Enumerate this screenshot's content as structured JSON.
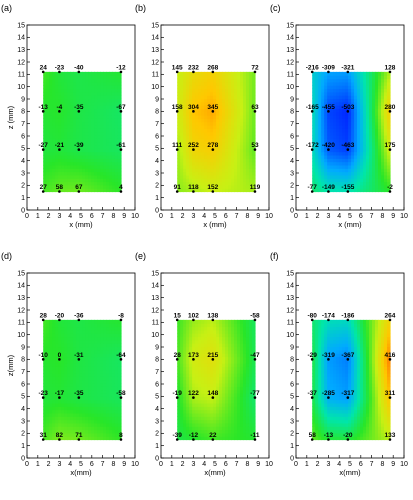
{
  "chart_data": [
    {
      "type": "heatmap",
      "panel_label": "(a)",
      "xlabel": "x (mm)",
      "ylabel": "z (mm)",
      "xlim": [
        0,
        10
      ],
      "ylim": [
        0,
        15
      ],
      "x_ticks": [
        "0",
        "1",
        "2",
        "3",
        "4",
        "5",
        "6",
        "7",
        "8",
        "9",
        "10"
      ],
      "y_ticks": [
        "0",
        "1",
        "2",
        "3",
        "4",
        "5",
        "6",
        "7",
        "8",
        "9",
        "10",
        "11",
        "12",
        "13",
        "14",
        "15"
      ],
      "x": [
        1.5,
        3.0,
        4.8,
        8.7
      ],
      "z": [
        11.2,
        8.0,
        4.9,
        1.5
      ],
      "values": [
        [
          24,
          -23,
          -40,
          -12
        ],
        [
          -13,
          -4,
          -35,
          -67
        ],
        [
          -27,
          -21,
          -39,
          -61
        ],
        [
          27,
          58,
          67,
          4
        ]
      ]
    },
    {
      "type": "heatmap",
      "panel_label": "(b)",
      "xlabel": "x (mm)",
      "ylabel": "",
      "xlim": [
        0,
        10
      ],
      "ylim": [
        0,
        15
      ],
      "x_ticks": [
        "0",
        "1",
        "2",
        "3",
        "4",
        "5",
        "6",
        "7",
        "8",
        "9",
        "10"
      ],
      "y_ticks": [
        "0",
        "1",
        "2",
        "3",
        "4",
        "5",
        "6",
        "7",
        "8",
        "9",
        "10",
        "11",
        "12",
        "13",
        "14",
        "15"
      ],
      "x": [
        1.5,
        3.0,
        4.8,
        8.7
      ],
      "z": [
        11.2,
        8.0,
        4.9,
        1.5
      ],
      "values": [
        [
          145,
          232,
          268,
          72
        ],
        [
          158,
          304,
          345,
          63
        ],
        [
          111,
          252,
          278,
          53
        ],
        [
          91,
          118,
          152,
          119
        ]
      ]
    },
    {
      "type": "heatmap",
      "panel_label": "(c)",
      "xlabel": "x (mm)",
      "ylabel": "",
      "xlim": [
        0,
        10
      ],
      "ylim": [
        0,
        15
      ],
      "x_ticks": [
        "0",
        "1",
        "2",
        "3",
        "4",
        "5",
        "6",
        "7",
        "8",
        "9",
        "10"
      ],
      "y_ticks": [
        "0",
        "1",
        "2",
        "3",
        "4",
        "5",
        "6",
        "7",
        "8",
        "9",
        "10",
        "11",
        "12",
        "13",
        "14",
        "15"
      ],
      "x": [
        1.5,
        3.0,
        4.8,
        8.7
      ],
      "z": [
        11.2,
        8.0,
        4.9,
        1.5
      ],
      "values": [
        [
          -216,
          -309,
          -321,
          128
        ],
        [
          -165,
          -455,
          -503,
          280
        ],
        [
          -172,
          -420,
          -463,
          175
        ],
        [
          -77,
          -149,
          -155,
          -2
        ]
      ]
    },
    {
      "type": "heatmap",
      "panel_label": "(d)",
      "xlabel": "x(mm)",
      "ylabel": "z(mm)",
      "xlim": [
        0,
        10
      ],
      "ylim": [
        0,
        15
      ],
      "x_ticks": [
        "0",
        "1",
        "2",
        "3",
        "4",
        "5",
        "6",
        "7",
        "8",
        "9",
        "10"
      ],
      "y_ticks": [
        "0",
        "1",
        "2",
        "3",
        "4",
        "5",
        "6",
        "7",
        "8",
        "9",
        "10",
        "11",
        "12",
        "13",
        "14",
        "15"
      ],
      "x": [
        1.5,
        3.0,
        4.8,
        8.7
      ],
      "z": [
        11.2,
        8.0,
        4.9,
        1.5
      ],
      "values": [
        [
          28,
          -20,
          -36,
          -8
        ],
        [
          -10,
          0,
          -31,
          -64
        ],
        [
          -23,
          -17,
          -35,
          -58
        ],
        [
          31,
          82,
          71,
          8
        ]
      ]
    },
    {
      "type": "heatmap",
      "panel_label": "(e)",
      "xlabel": "x(mm)",
      "ylabel": "",
      "xlim": [
        0,
        10
      ],
      "ylim": [
        0,
        15
      ],
      "x_ticks": [
        "0",
        "1",
        "2",
        "3",
        "4",
        "5",
        "6",
        "7",
        "8",
        "9",
        "10"
      ],
      "y_ticks": [
        "0",
        "1",
        "2",
        "3",
        "4",
        "5",
        "6",
        "7",
        "8",
        "9",
        "10",
        "11",
        "12",
        "13",
        "14",
        "15"
      ],
      "x": [
        1.5,
        3.0,
        4.8,
        8.7
      ],
      "z": [
        11.2,
        8.0,
        4.9,
        1.5
      ],
      "values": [
        [
          15,
          102,
          138,
          -58
        ],
        [
          28,
          173,
          215,
          -47
        ],
        [
          -19,
          122,
          148,
          -77
        ],
        [
          -39,
          -12,
          22,
          -11
        ]
      ]
    },
    {
      "type": "heatmap",
      "panel_label": "(f)",
      "xlabel": "x(mm)",
      "ylabel": "",
      "xlim": [
        0,
        10
      ],
      "ylim": [
        0,
        15
      ],
      "x_ticks": [
        "0",
        "1",
        "2",
        "3",
        "4",
        "5",
        "6",
        "7",
        "8",
        "9",
        "10"
      ],
      "y_ticks": [
        "0",
        "1",
        "2",
        "3",
        "4",
        "5",
        "6",
        "7",
        "8",
        "9",
        "10",
        "11",
        "12",
        "13",
        "14",
        "15"
      ],
      "x": [
        1.5,
        3.0,
        4.8,
        8.7
      ],
      "z": [
        11.2,
        8.0,
        4.9,
        1.5
      ],
      "values": [
        [
          -80,
          -174,
          -186,
          264
        ],
        [
          -29,
          -319,
          -367,
          416
        ],
        [
          -37,
          -285,
          -317,
          311
        ],
        [
          58,
          -13,
          -20,
          133
        ]
      ]
    }
  ]
}
